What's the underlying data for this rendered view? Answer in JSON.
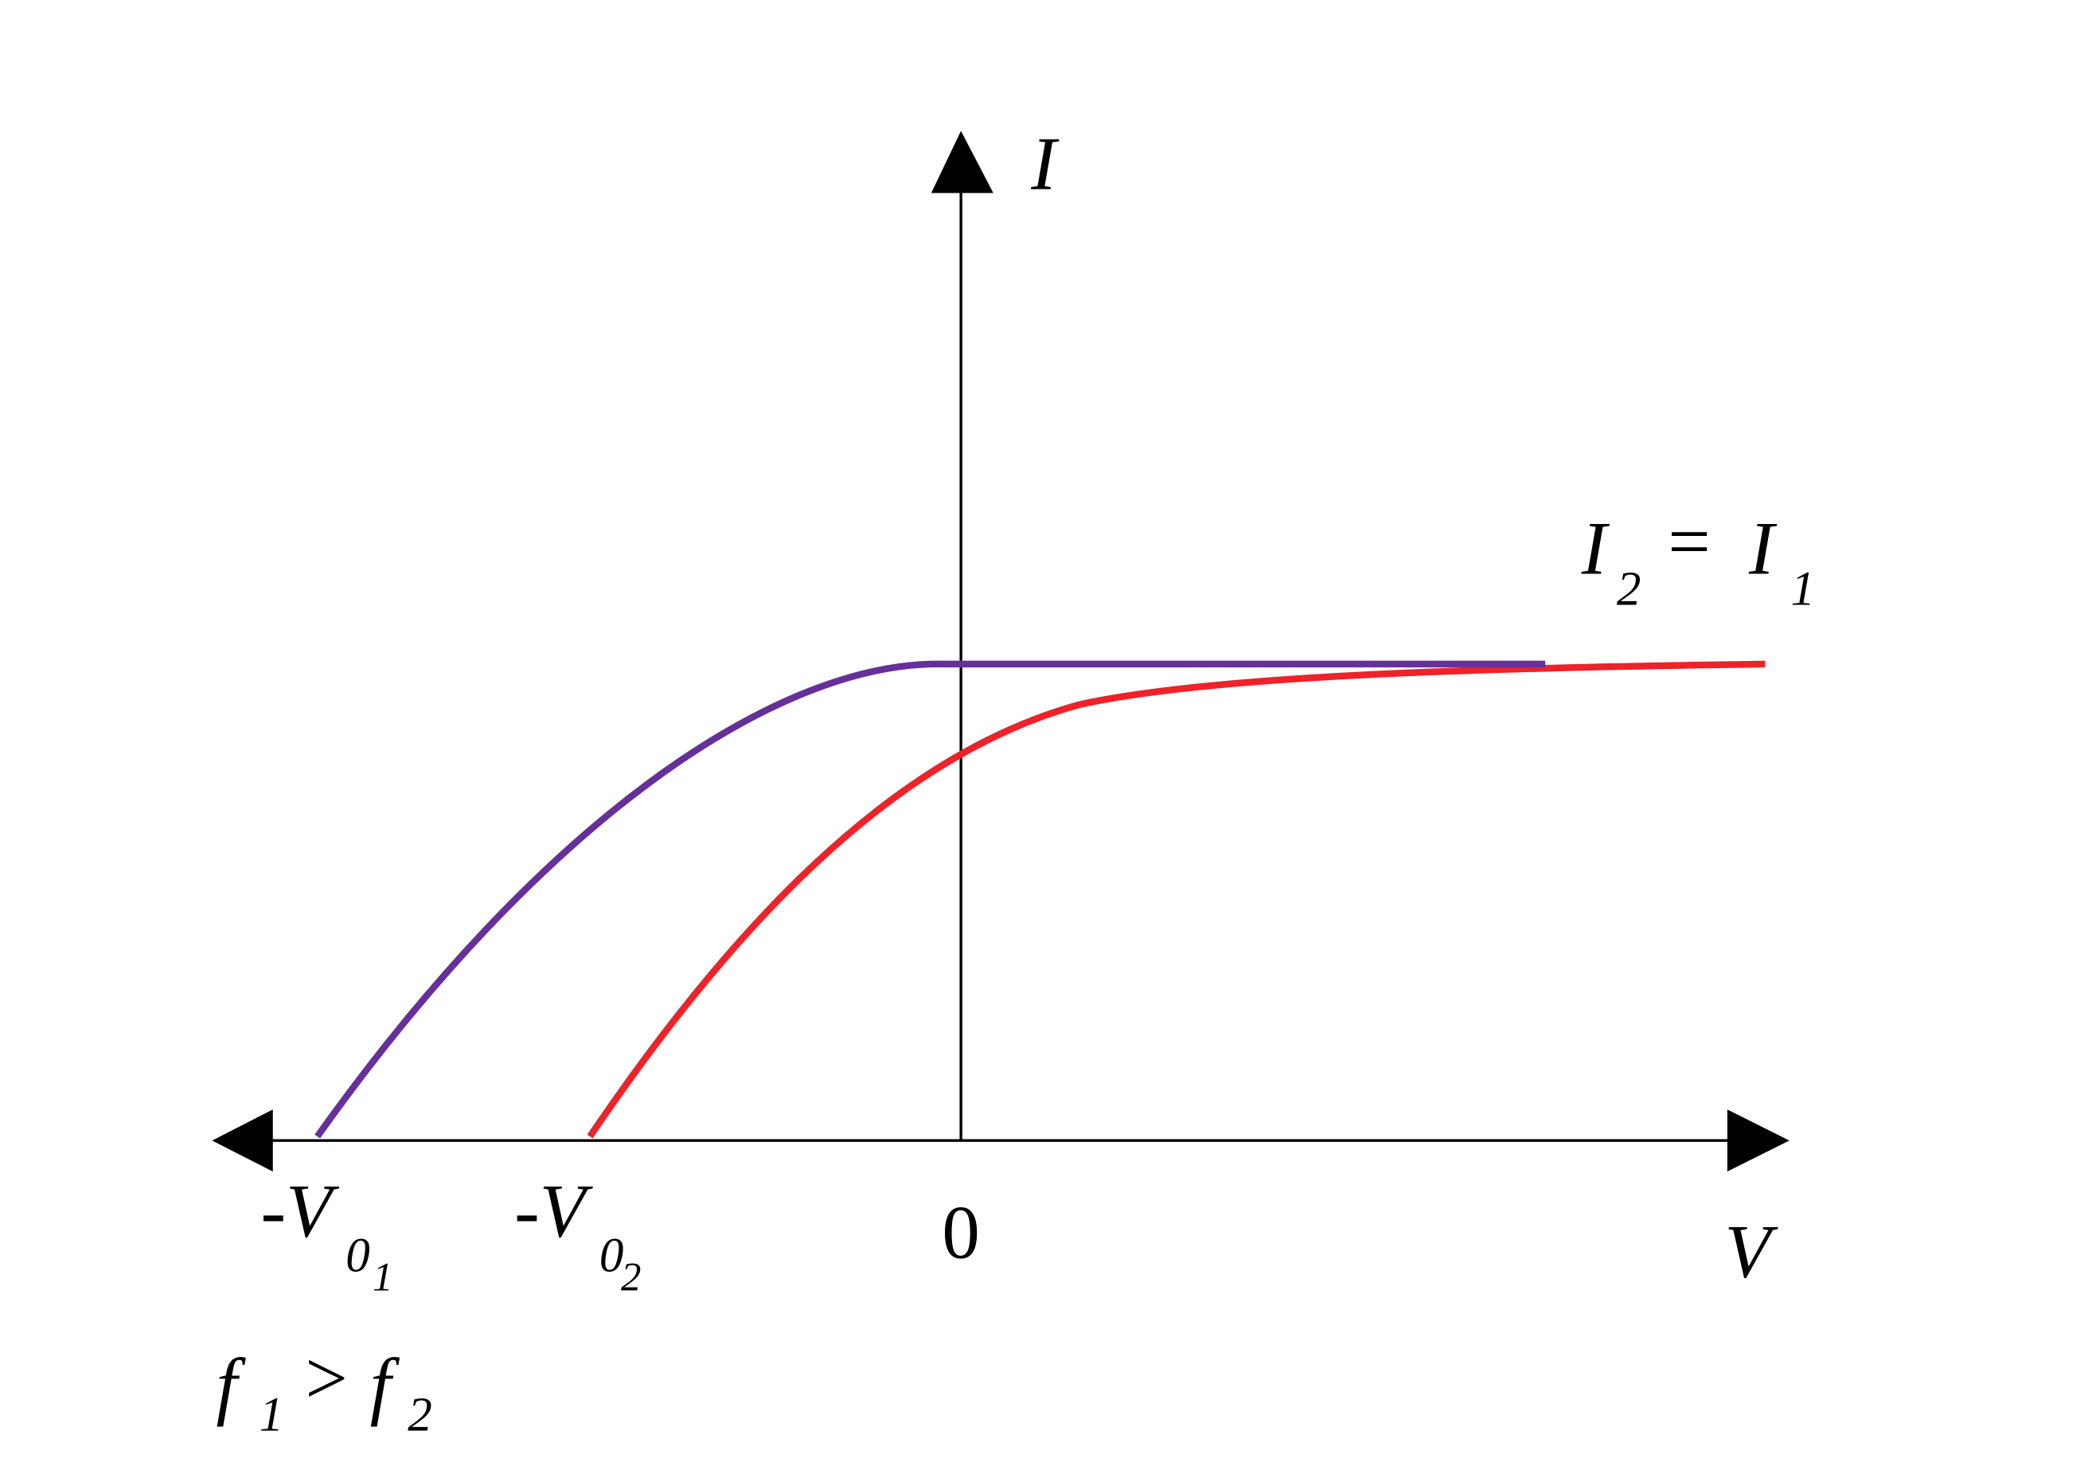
{
  "axes": {
    "y_label": "I",
    "x_label": "V",
    "origin_label": "0"
  },
  "stopping_potentials": [
    {
      "prefix": "-V",
      "sub": "0",
      "index": "1"
    },
    {
      "prefix": "-V",
      "sub": "0",
      "index": "2"
    }
  ],
  "saturation_label": {
    "lhs": "I",
    "lhs_index": "2",
    "relation": "=",
    "rhs": "I",
    "rhs_index": "1"
  },
  "frequency_condition": {
    "lhs": "f",
    "lhs_index": "1",
    "relation": ">",
    "rhs": "f",
    "rhs_index": "2"
  }
}
